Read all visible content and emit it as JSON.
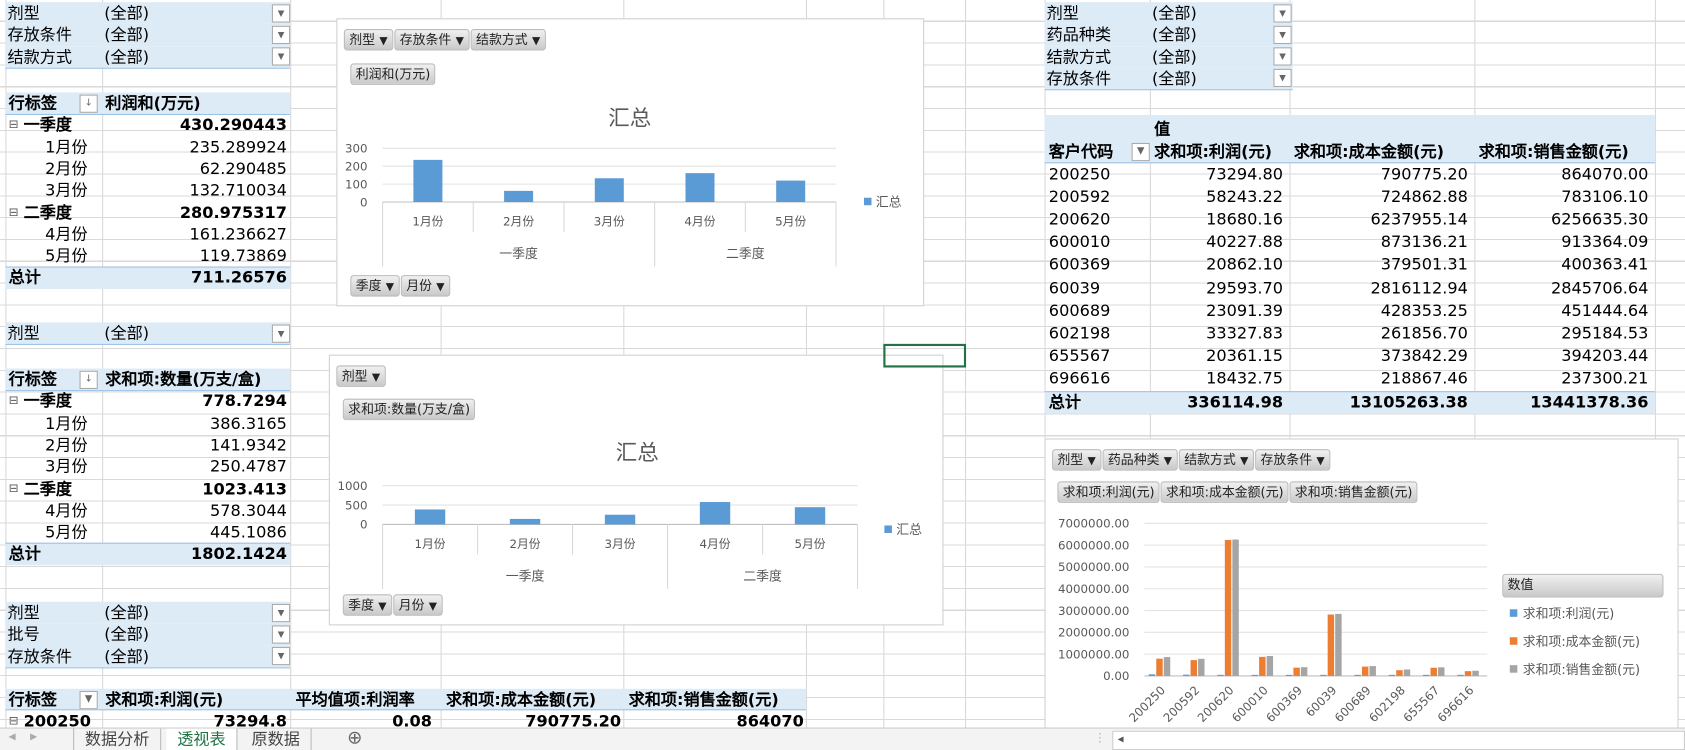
{
  "colors": {
    "bar_blue": "#5b9bd5",
    "bar_orange": "#ed7d31",
    "bar_gray": "#a5a5a5",
    "pivot_header": "#ddebf7",
    "active_tab": "#217346"
  },
  "left_filters_1": [
    {
      "label": "剂型",
      "value": "(全部)"
    },
    {
      "label": "存放条件",
      "value": "(全部)"
    },
    {
      "label": "结款方式",
      "value": "(全部)"
    }
  ],
  "pivot1": {
    "row_label": "行标签",
    "value_header": "利润和(万元)",
    "rows": [
      {
        "label": "一季度",
        "value": "430.290443",
        "group": true
      },
      {
        "label": "1月份",
        "value": "235.289924"
      },
      {
        "label": "2月份",
        "value": "62.290485"
      },
      {
        "label": "3月份",
        "value": "132.710034"
      },
      {
        "label": "二季度",
        "value": "280.975317",
        "group": true
      },
      {
        "label": "4月份",
        "value": "161.236627"
      },
      {
        "label": "5月份",
        "value": "119.73869"
      }
    ],
    "total_label": "总计",
    "total": "711.26576"
  },
  "left_filter_2": {
    "label": "剂型",
    "value": "(全部)"
  },
  "pivot2": {
    "row_label": "行标签",
    "value_header": "求和项:数量(万支/盒)",
    "rows": [
      {
        "label": "一季度",
        "value": "778.7294",
        "group": true
      },
      {
        "label": "1月份",
        "value": "386.3165"
      },
      {
        "label": "2月份",
        "value": "141.9342"
      },
      {
        "label": "3月份",
        "value": "250.4787"
      },
      {
        "label": "二季度",
        "value": "1023.413",
        "group": true
      },
      {
        "label": "4月份",
        "value": "578.3044"
      },
      {
        "label": "5月份",
        "value": "445.1086"
      }
    ],
    "total_label": "总计",
    "total": "1802.1424"
  },
  "left_filters_3": [
    {
      "label": "剂型",
      "value": "(全部)"
    },
    {
      "label": "批号",
      "value": "(全部)"
    },
    {
      "label": "存放条件",
      "value": "(全部)"
    }
  ],
  "pivot3": {
    "headers": [
      "行标签",
      "求和项:利润(元)",
      "平均值项:利润率",
      "求和项:成本金额(元)",
      "求和项:销售金额(元)"
    ],
    "row": [
      "200250",
      "73294.8",
      "0.08",
      "790775.20",
      "864070"
    ]
  },
  "right_filters": [
    {
      "label": "剂型",
      "value": "(全部)"
    },
    {
      "label": "药品种类",
      "value": "(全部)"
    },
    {
      "label": "结款方式",
      "value": "(全部)"
    },
    {
      "label": "存放条件",
      "value": "(全部)"
    }
  ],
  "pivot4": {
    "values_label": "值",
    "headers": [
      "客户代码",
      "求和项:利润(元)",
      "求和项:成本金额(元)",
      "求和项:销售金额(元)"
    ],
    "rows": [
      [
        "200250",
        "73294.80",
        "790775.20",
        "864070.00"
      ],
      [
        "200592",
        "58243.22",
        "724862.88",
        "783106.10"
      ],
      [
        "200620",
        "18680.16",
        "6237955.14",
        "6256635.30"
      ],
      [
        "600010",
        "40227.88",
        "873136.21",
        "913364.09"
      ],
      [
        "600369",
        "20862.10",
        "379501.31",
        "400363.41"
      ],
      [
        "60039",
        "29593.70",
        "2816112.94",
        "2845706.64"
      ],
      [
        "600689",
        "23091.39",
        "428353.25",
        "451444.64"
      ],
      [
        "602198",
        "33327.83",
        "261856.70",
        "295184.53"
      ],
      [
        "655567",
        "20361.15",
        "373842.29",
        "394203.44"
      ],
      [
        "696616",
        "18432.75",
        "218867.46",
        "237300.21"
      ]
    ],
    "total": [
      "总计",
      "336114.98",
      "13105263.38",
      "13441378.36"
    ]
  },
  "chart_data": [
    {
      "type": "bar",
      "title": "汇总",
      "filter_buttons": [
        "剂型",
        "存放条件",
        "结款方式"
      ],
      "value_button": "利润和(万元)",
      "axis_buttons": [
        "季度",
        "月份"
      ],
      "categories": [
        "1月份",
        "2月份",
        "3月份",
        "4月份",
        "5月份"
      ],
      "groups": [
        {
          "name": "一季度",
          "count": 3
        },
        {
          "name": "二季度",
          "count": 2
        }
      ],
      "series": [
        {
          "name": "汇总",
          "values": [
            235.29,
            62.29,
            132.71,
            161.24,
            119.74
          ]
        }
      ],
      "ylim": [
        0,
        300
      ],
      "yticks": [
        "0",
        "100",
        "200",
        "300"
      ],
      "legend": "right",
      "grid": true
    },
    {
      "type": "bar",
      "title": "汇总",
      "filter_buttons": [
        "剂型"
      ],
      "value_button": "求和项:数量(万支/盒)",
      "axis_buttons": [
        "季度",
        "月份"
      ],
      "categories": [
        "1月份",
        "2月份",
        "3月份",
        "4月份",
        "5月份"
      ],
      "groups": [
        {
          "name": "一季度",
          "count": 3
        },
        {
          "name": "二季度",
          "count": 2
        }
      ],
      "series": [
        {
          "name": "汇总",
          "values": [
            386.32,
            141.93,
            250.48,
            578.3,
            445.11
          ]
        }
      ],
      "ylim": [
        0,
        1000
      ],
      "yticks": [
        "0",
        "500",
        "1000"
      ],
      "legend": "right",
      "grid": true
    },
    {
      "type": "bar",
      "filter_buttons": [
        "剂型",
        "药品种类",
        "结款方式",
        "存放条件"
      ],
      "value_buttons": [
        "求和项:利润(元)",
        "求和项:成本金额(元)",
        "求和项:销售金额(元)"
      ],
      "legend_title": "数值",
      "legend": "right",
      "categories": [
        "200250",
        "200592",
        "200620",
        "600010",
        "600369",
        "60039",
        "600689",
        "602198",
        "655567",
        "696616"
      ],
      "series": [
        {
          "name": "求和项:利润(元)",
          "values": [
            73294.8,
            58243.22,
            18680.16,
            40227.88,
            20862.1,
            29593.7,
            23091.39,
            33327.83,
            20361.15,
            18432.75
          ]
        },
        {
          "name": "求和项:成本金额(元)",
          "values": [
            790775.2,
            724862.88,
            6237955.14,
            873136.21,
            379501.31,
            2816112.94,
            428353.25,
            261856.7,
            373842.29,
            218867.46
          ]
        },
        {
          "name": "求和项:销售金额(元)",
          "values": [
            864070.0,
            783106.1,
            6256635.3,
            913364.09,
            400363.41,
            2845706.64,
            451444.64,
            295184.53,
            394203.44,
            237300.21
          ]
        }
      ],
      "ylim": [
        0,
        7000000
      ],
      "yticks": [
        "0.00",
        "1000000.00",
        "2000000.00",
        "3000000.00",
        "4000000.00",
        "5000000.00",
        "6000000.00",
        "7000000.00"
      ],
      "grid": true
    }
  ],
  "sheet_tabs": {
    "tabs": [
      "数据分析",
      "透视表",
      "原数据"
    ],
    "active": "透视表",
    "add": "⊕"
  }
}
